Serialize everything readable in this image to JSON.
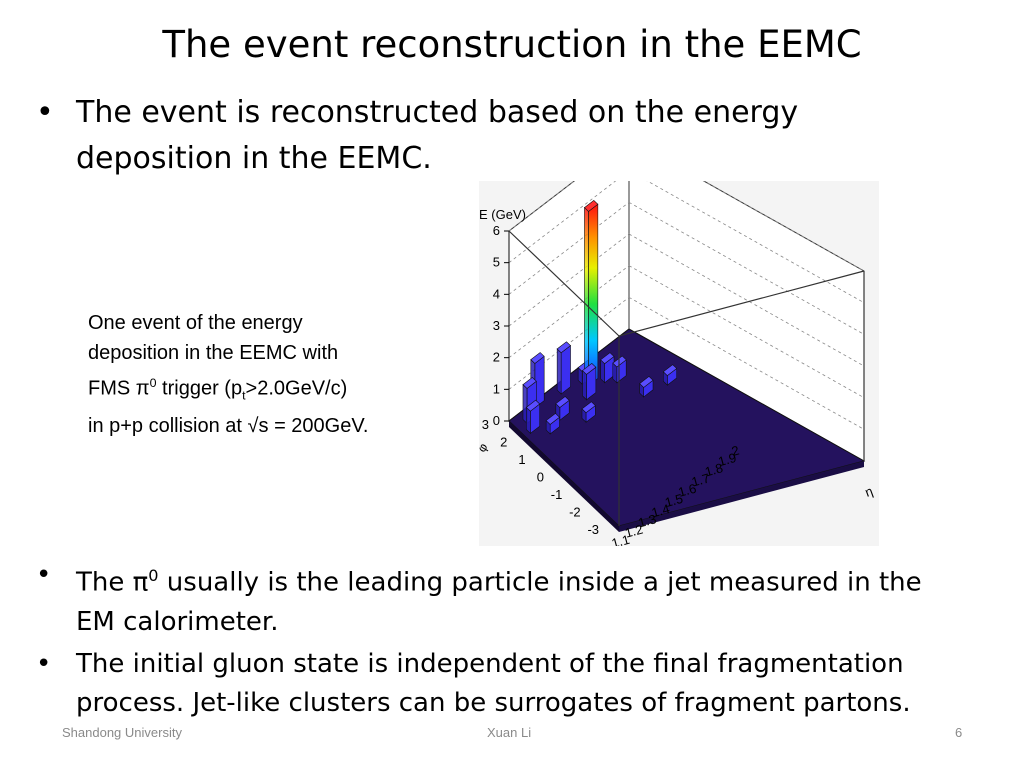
{
  "slide": {
    "title": "The event reconstruction in the EEMC",
    "bullet1": "The event is reconstructed based on the energy deposition in the EEMC.",
    "bullet2_pre": "The π",
    "bullet2_sup": "0",
    "bullet2_post": " usually is the leading particle inside a jet measured in the EM calorimeter.",
    "bullet3": "The initial gluon state is independent of the final fragmentation process. Jet-like clusters can be surrogates of fragment partons.",
    "bullet_symbol": "•"
  },
  "caption": {
    "line1": "One event of the energy",
    "line2": "deposition in the EEMC with",
    "line3_a": "FMS π",
    "line3_sup": "0",
    "line3_b": " trigger (p",
    "line3_sub": "t",
    "line3_c": ">2.0GeV/c)",
    "line4": "in p+p collision at √s = 200GeV."
  },
  "footer": {
    "left": "Shandong University",
    "center": "Xuan Li",
    "right": "6"
  },
  "chart_data": {
    "type": "lego3d",
    "zlabel": "E (GeV)",
    "xlabel": "η",
    "ylabel": "φ",
    "z_ticks": [
      "0",
      "1",
      "2",
      "3",
      "4",
      "5",
      "6"
    ],
    "x_ticks": [
      "1.1",
      "1.2",
      "1.3",
      "1.4",
      "1.5",
      "1.6",
      "1.7",
      "1.8",
      "1.9",
      "2"
    ],
    "y_ticks": [
      "-3",
      "-2",
      "-1",
      "0",
      "1",
      "2",
      "3"
    ],
    "zlim": [
      0,
      6
    ],
    "xlim": [
      1.1,
      2
    ],
    "ylim": [
      -3,
      3
    ],
    "grid": true,
    "bars": [
      {
        "eta": 1.62,
        "phi": 2.3,
        "e": 5.5
      },
      {
        "eta": 1.3,
        "phi": 2.9,
        "e": 1.4
      },
      {
        "eta": 1.47,
        "phi": 2.7,
        "e": 1.3
      },
      {
        "eta": 1.2,
        "phi": 2.6,
        "e": 1.1
      },
      {
        "eta": 1.55,
        "phi": 1.9,
        "e": 0.8
      },
      {
        "eta": 1.17,
        "phi": 2.2,
        "e": 0.7
      },
      {
        "eta": 1.7,
        "phi": 2.0,
        "e": 0.6
      },
      {
        "eta": 1.75,
        "phi": 1.7,
        "e": 0.5
      },
      {
        "eta": 1.35,
        "phi": 1.9,
        "e": 0.4
      },
      {
        "eta": 1.45,
        "phi": 1.2,
        "e": 0.3
      },
      {
        "eta": 1.8,
        "phi": 0.6,
        "e": 0.3
      },
      {
        "eta": 1.95,
        "phi": 0.4,
        "e": 0.3
      },
      {
        "eta": 1.25,
        "phi": 1.7,
        "e": 0.3
      },
      {
        "eta": 1.6,
        "phi": 2.5,
        "e": 0.4
      }
    ]
  }
}
